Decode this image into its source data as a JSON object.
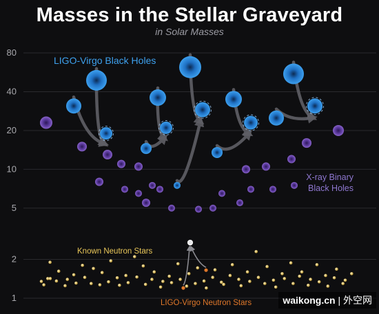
{
  "chart_data": {
    "type": "scatter",
    "title": "Masses in the Stellar Graveyard",
    "subtitle": "in Solar Masses",
    "yscale": "log",
    "ylim": [
      0.8,
      105
    ],
    "yticks": [
      1,
      2,
      5,
      10,
      20,
      40,
      80
    ],
    "grid": true,
    "series": [
      {
        "name": "LIGO-Virgo Black Holes",
        "color": "#1e88e5",
        "label_color": "#3ea1ee",
        "points": [
          {
            "x": 1,
            "y": 31
          },
          {
            "x": 2,
            "y": 49
          },
          {
            "x": 3,
            "y": 19
          },
          {
            "x": 4,
            "y": 14.5
          },
          {
            "x": 5,
            "y": 36
          },
          {
            "x": 6,
            "y": 21
          },
          {
            "x": 7,
            "y": 7.5
          },
          {
            "x": 8,
            "y": 62
          },
          {
            "x": 9,
            "y": 29
          },
          {
            "x": 10,
            "y": 13.5
          },
          {
            "x": 11,
            "y": 35
          },
          {
            "x": 12,
            "y": 23
          },
          {
            "x": 13,
            "y": 25
          },
          {
            "x": 14,
            "y": 55
          },
          {
            "x": 15,
            "y": 31
          }
        ]
      },
      {
        "name": "X-ray Binary Black Holes",
        "color": "#6a3fae",
        "label_color": "#8e77cf",
        "points": [
          {
            "x": 0,
            "y": 23
          },
          {
            "x": 1,
            "y": 15
          },
          {
            "x": 2,
            "y": 8
          },
          {
            "x": 3,
            "y": 13
          },
          {
            "x": 4,
            "y": 11
          },
          {
            "x": 5,
            "y": 7
          },
          {
            "x": 6,
            "y": 10.5
          },
          {
            "x": 7,
            "y": 6.5
          },
          {
            "x": 8,
            "y": 5.5
          },
          {
            "x": 9,
            "y": 7.5
          },
          {
            "x": 10,
            "y": 7
          },
          {
            "x": 11,
            "y": 5
          },
          {
            "x": 12,
            "y": 4.9
          },
          {
            "x": 13,
            "y": 5
          },
          {
            "x": 14,
            "y": 6.5
          },
          {
            "x": 15,
            "y": 5.5
          },
          {
            "x": 16,
            "y": 7
          },
          {
            "x": 17,
            "y": 10
          },
          {
            "x": 18,
            "y": 10.5
          },
          {
            "x": 19,
            "y": 7
          },
          {
            "x": 20,
            "y": 12
          },
          {
            "x": 21,
            "y": 7.5
          },
          {
            "x": 22,
            "y": 16
          },
          {
            "x": 23,
            "y": 20
          }
        ]
      },
      {
        "name": "Known Neutron Stars",
        "color": "#e6c65a",
        "label_color": "#e8c659",
        "points": [
          {
            "x": 0,
            "y": 1.35
          },
          {
            "x": 1,
            "y": 1.42
          },
          {
            "x": 2,
            "y": 1.9
          },
          {
            "x": 3,
            "y": 1.36
          },
          {
            "x": 4,
            "y": 1.62
          },
          {
            "x": 5,
            "y": 1.25
          },
          {
            "x": 6,
            "y": 1.4
          },
          {
            "x": 7,
            "y": 1.52
          },
          {
            "x": 8,
            "y": 1.31
          },
          {
            "x": 9,
            "y": 1.8
          },
          {
            "x": 10,
            "y": 1.45
          },
          {
            "x": 11,
            "y": 1.3
          },
          {
            "x": 12,
            "y": 1.7
          },
          {
            "x": 13,
            "y": 1.27
          },
          {
            "x": 14,
            "y": 1.58
          },
          {
            "x": 15,
            "y": 1.34
          },
          {
            "x": 16,
            "y": 1.95
          },
          {
            "x": 17,
            "y": 1.44
          },
          {
            "x": 18,
            "y": 1.26
          },
          {
            "x": 19,
            "y": 1.5
          },
          {
            "x": 20,
            "y": 1.32
          },
          {
            "x": 21,
            "y": 2.1
          },
          {
            "x": 22,
            "y": 1.46
          },
          {
            "x": 23,
            "y": 1.78
          },
          {
            "x": 24,
            "y": 1.28
          },
          {
            "x": 25,
            "y": 1.4
          },
          {
            "x": 26,
            "y": 1.6
          },
          {
            "x": 27,
            "y": 1.22
          },
          {
            "x": 28,
            "y": 1.35
          },
          {
            "x": 29,
            "y": 1.48
          },
          {
            "x": 30,
            "y": 1.32
          },
          {
            "x": 31,
            "y": 1.85
          },
          {
            "x": 32,
            "y": 1.4
          },
          {
            "x": 33,
            "y": 1.24
          },
          {
            "x": 34,
            "y": 1.55
          },
          {
            "x": 35,
            "y": 1.3
          },
          {
            "x": 36,
            "y": 1.72
          },
          {
            "x": 37,
            "y": 1.36
          },
          {
            "x": 38,
            "y": 1.2
          },
          {
            "x": 39,
            "y": 1.45
          },
          {
            "x": 40,
            "y": 1.66
          },
          {
            "x": 41,
            "y": 1.33
          },
          {
            "x": 42,
            "y": 1.28
          },
          {
            "x": 43,
            "y": 1.5
          },
          {
            "x": 44,
            "y": 1.82
          },
          {
            "x": 45,
            "y": 1.4
          },
          {
            "x": 46,
            "y": 1.25
          },
          {
            "x": 47,
            "y": 1.6
          },
          {
            "x": 48,
            "y": 1.35
          },
          {
            "x": 49,
            "y": 2.3
          },
          {
            "x": 50,
            "y": 1.45
          },
          {
            "x": 51,
            "y": 1.3
          },
          {
            "x": 52,
            "y": 1.76
          },
          {
            "x": 53,
            "y": 1.38
          },
          {
            "x": 54,
            "y": 1.22
          },
          {
            "x": 55,
            "y": 1.55
          },
          {
            "x": 56,
            "y": 1.42
          },
          {
            "x": 57,
            "y": 1.88
          },
          {
            "x": 58,
            "y": 1.3
          },
          {
            "x": 59,
            "y": 1.48
          },
          {
            "x": 60,
            "y": 1.6
          },
          {
            "x": 61,
            "y": 1.26
          },
          {
            "x": 62,
            "y": 1.4
          },
          {
            "x": 63,
            "y": 1.82
          },
          {
            "x": 64,
            "y": 1.34
          },
          {
            "x": 65,
            "y": 1.5
          },
          {
            "x": 66,
            "y": 1.24
          },
          {
            "x": 67,
            "y": 1.44
          },
          {
            "x": 68,
            "y": 1.68
          },
          {
            "x": 69,
            "y": 1.3
          },
          {
            "x": 70,
            "y": 1.38
          },
          {
            "x": 71,
            "y": 1.55
          },
          {
            "x": 72,
            "y": 1.27
          },
          {
            "x": 73,
            "y": 1.42
          }
        ]
      },
      {
        "name": "LIGO-Virgo Neutron Stars",
        "color": "#e0782a",
        "label_color": "#e0782a",
        "points": [
          {
            "x": 1,
            "y": 1.2
          },
          {
            "x": 2,
            "y": 1.65
          },
          {
            "x": 3,
            "y": 2.7
          }
        ]
      }
    ],
    "mergers": [
      {
        "from": [
          0,
          1
        ],
        "to": 2
      },
      {
        "from": [
          3,
          4
        ],
        "to": 5
      },
      {
        "from": [
          6,
          7
        ],
        "to": 8
      },
      {
        "from": [
          9,
          10
        ],
        "to": 11
      },
      {
        "from": [
          12,
          13
        ],
        "to": 14
      }
    ]
  },
  "watermark": {
    "site": "waikong.cn",
    "separator": "|",
    "name": "外空网"
  }
}
